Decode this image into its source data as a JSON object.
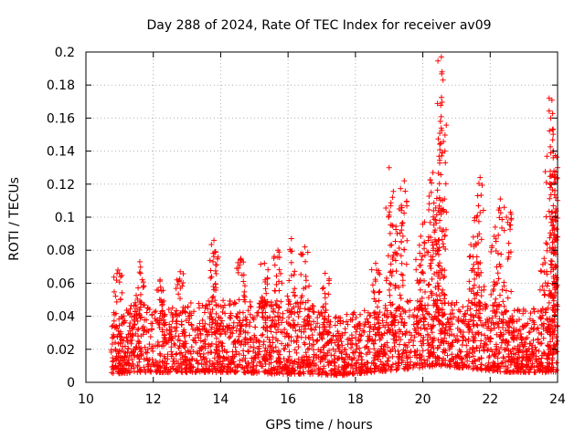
{
  "chart_data": {
    "type": "scatter",
    "title": "Day 288 of 2024, Rate Of TEC Index for receiver av09",
    "xlabel": "GPS time / hours",
    "ylabel": "ROTI / TECUs",
    "xlim": [
      10,
      24
    ],
    "ylim": [
      0,
      0.2
    ],
    "xticks": [
      10,
      12,
      14,
      16,
      18,
      20,
      22,
      24
    ],
    "yticks": [
      0,
      0.02,
      0.04,
      0.06,
      0.08,
      0.1,
      0.12,
      0.14,
      0.16,
      0.18,
      0.2
    ],
    "xtick_labels": [
      "10",
      "12",
      "14",
      "16",
      "18",
      "20",
      "22",
      "24"
    ],
    "ytick_labels": [
      "0",
      "0.02",
      "0.04",
      "0.06",
      "0.08",
      "0.1",
      "0.12",
      "0.14",
      "0.16",
      "0.18",
      "0.2"
    ],
    "grid": true,
    "marker": "+",
    "series_color": "#ff0000",
    "data_note": "dense scatter; notable peaks listed in 'peaks', baseline band by hour in 'baseline'",
    "baseline": [
      {
        "x": 10.8,
        "lo": 0.005,
        "hi": 0.035
      },
      {
        "x": 11.5,
        "lo": 0.006,
        "hi": 0.05
      },
      {
        "x": 12.5,
        "lo": 0.006,
        "hi": 0.045
      },
      {
        "x": 13.5,
        "lo": 0.006,
        "hi": 0.05
      },
      {
        "x": 14.5,
        "lo": 0.006,
        "hi": 0.05
      },
      {
        "x": 15.5,
        "lo": 0.005,
        "hi": 0.05
      },
      {
        "x": 16.5,
        "lo": 0.005,
        "hi": 0.05
      },
      {
        "x": 17.5,
        "lo": 0.004,
        "hi": 0.04
      },
      {
        "x": 18.5,
        "lo": 0.006,
        "hi": 0.045
      },
      {
        "x": 19.5,
        "lo": 0.008,
        "hi": 0.05
      },
      {
        "x": 20.5,
        "lo": 0.01,
        "hi": 0.05
      },
      {
        "x": 21.5,
        "lo": 0.008,
        "hi": 0.05
      },
      {
        "x": 22.5,
        "lo": 0.006,
        "hi": 0.045
      },
      {
        "x": 23.5,
        "lo": 0.006,
        "hi": 0.045
      }
    ],
    "peaks": [
      {
        "x": 10.95,
        "y": 0.068
      },
      {
        "x": 11.6,
        "y": 0.073
      },
      {
        "x": 12.2,
        "y": 0.062
      },
      {
        "x": 12.8,
        "y": 0.067
      },
      {
        "x": 13.8,
        "y": 0.086
      },
      {
        "x": 13.85,
        "y": 0.079
      },
      {
        "x": 14.6,
        "y": 0.075
      },
      {
        "x": 15.3,
        "y": 0.072
      },
      {
        "x": 15.7,
        "y": 0.08
      },
      {
        "x": 16.1,
        "y": 0.087
      },
      {
        "x": 16.5,
        "y": 0.082
      },
      {
        "x": 17.1,
        "y": 0.066
      },
      {
        "x": 18.6,
        "y": 0.072
      },
      {
        "x": 19.0,
        "y": 0.13
      },
      {
        "x": 19.1,
        "y": 0.112
      },
      {
        "x": 19.3,
        "y": 0.105
      },
      {
        "x": 19.45,
        "y": 0.122
      },
      {
        "x": 19.9,
        "y": 0.083
      },
      {
        "x": 20.05,
        "y": 0.097
      },
      {
        "x": 20.25,
        "y": 0.115
      },
      {
        "x": 20.3,
        "y": 0.127
      },
      {
        "x": 20.5,
        "y": 0.103
      },
      {
        "x": 20.55,
        "y": 0.197
      },
      {
        "x": 20.57,
        "y": 0.188
      },
      {
        "x": 20.6,
        "y": 0.183
      },
      {
        "x": 20.52,
        "y": 0.158
      },
      {
        "x": 21.6,
        "y": 0.1
      },
      {
        "x": 21.7,
        "y": 0.124
      },
      {
        "x": 21.5,
        "y": 0.088
      },
      {
        "x": 22.15,
        "y": 0.094
      },
      {
        "x": 22.3,
        "y": 0.111
      },
      {
        "x": 22.6,
        "y": 0.103
      },
      {
        "x": 23.75,
        "y": 0.172
      },
      {
        "x": 23.8,
        "y": 0.16
      },
      {
        "x": 23.85,
        "y": 0.153
      },
      {
        "x": 23.88,
        "y": 0.14
      },
      {
        "x": 23.9,
        "y": 0.124
      },
      {
        "x": 23.95,
        "y": 0.105
      },
      {
        "x": 24.0,
        "y": 0.088
      },
      {
        "x": 23.6,
        "y": 0.075
      },
      {
        "x": 24.0,
        "y": 0.13
      }
    ]
  }
}
